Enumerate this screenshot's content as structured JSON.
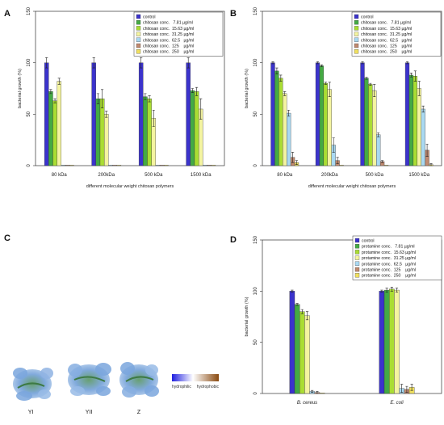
{
  "panels": {
    "A": {
      "letter": "A"
    },
    "B": {
      "letter": "B"
    },
    "C": {
      "letter": "C"
    },
    "D": {
      "letter": "D"
    }
  },
  "colors": [
    "#3b33cc",
    "#44aa44",
    "#aadd33",
    "#f4f4a0",
    "#a9d9f2",
    "#c08a70",
    "#f0e060"
  ],
  "panel_c": {
    "molecule_labels": [
      "YI",
      "YII",
      "Z"
    ],
    "scale_left": "hydrophilic",
    "scale_right": "hydrophobic"
  },
  "chart_data": [
    {
      "id": "A",
      "type": "bar",
      "categories": [
        "80 kDa",
        "200kDa",
        "500 kDa",
        "1500 kDa"
      ],
      "xlabel": "different molecular weight chitosan polymers",
      "ylabel": "bacterial growth (%)",
      "ylim": [
        0,
        150
      ],
      "yticks": [
        0,
        50,
        100,
        150
      ],
      "legend_position": "top-right",
      "series": [
        {
          "name": "control",
          "values": [
            100,
            100,
            100,
            100
          ],
          "err": [
            5,
            5,
            5,
            5
          ]
        },
        {
          "name": "chitosan conc.   7.81 µg/ml",
          "values": [
            72,
            65,
            67,
            73
          ],
          "err": [
            2,
            5,
            3,
            2
          ]
        },
        {
          "name": "chitosan conc.  15.63 µg/ml",
          "values": [
            63,
            65,
            65,
            72
          ],
          "err": [
            2,
            9,
            3,
            4
          ]
        },
        {
          "name": "chitosan conc.  31.25 µg/ml",
          "values": [
            82,
            50,
            46,
            55
          ],
          "err": [
            3,
            3,
            8,
            10
          ]
        },
        {
          "name": "chitosan conc.  62.5   µg/ml",
          "values": [
            0.5,
            0.5,
            0.5,
            0.5
          ],
          "err": [
            0,
            0,
            0,
            0
          ]
        },
        {
          "name": "chitosan conc.  125    µg/ml",
          "values": [
            0.5,
            0.5,
            0.5,
            0.5
          ],
          "err": [
            0,
            0,
            0,
            0
          ]
        },
        {
          "name": "chitosan conc.  250    µg/ml",
          "values": [
            0.5,
            0.5,
            0.5,
            0.5
          ],
          "err": [
            0,
            0,
            0,
            0
          ]
        }
      ]
    },
    {
      "id": "B",
      "type": "bar",
      "categories": [
        "80 kDa",
        "200kDa",
        "500 kDa",
        "1500 kDa"
      ],
      "xlabel": "different molecular weight chitosan polymers",
      "ylabel": "bacterial growth (%)",
      "ylim": [
        0,
        150
      ],
      "yticks": [
        0,
        50,
        100,
        150
      ],
      "legend_position": "top-right",
      "series": [
        {
          "name": "control",
          "values": [
            100,
            100,
            100,
            100
          ],
          "err": [
            1,
            1,
            1,
            1
          ]
        },
        {
          "name": "chitosan conc.   7.81 µg/ml",
          "values": [
            92,
            97,
            85,
            88
          ],
          "err": [
            3,
            1,
            1,
            2
          ]
        },
        {
          "name": "chitosan conc.  15.63 µg/ml",
          "values": [
            85,
            80,
            79,
            87
          ],
          "err": [
            3,
            1,
            1,
            5
          ]
        },
        {
          "name": "chitosan conc.  31.25 µg/ml",
          "values": [
            70,
            74,
            73,
            75
          ],
          "err": [
            2,
            7,
            6,
            7
          ]
        },
        {
          "name": "chitosan conc.  62.5   µg/ml",
          "values": [
            51,
            20,
            30,
            55
          ],
          "err": [
            3,
            7,
            2,
            3
          ]
        },
        {
          "name": "chitosan conc.  125    µg/ml",
          "values": [
            8,
            5,
            4,
            15
          ],
          "err": [
            5,
            3,
            1,
            6
          ]
        },
        {
          "name": "chitosan conc.  250    µg/ml",
          "values": [
            3,
            0.5,
            0.5,
            1
          ],
          "err": [
            2,
            0,
            0,
            1
          ]
        }
      ]
    },
    {
      "id": "D",
      "type": "bar",
      "categories": [
        "B. cereus",
        "E. coli"
      ],
      "xlabel": "",
      "ylabel": "bacterial growth (%)",
      "ylim": [
        0,
        150
      ],
      "yticks": [
        0,
        50,
        100,
        150
      ],
      "legend_position": "top-right",
      "series": [
        {
          "name": "control",
          "values": [
            100,
            100
          ],
          "err": [
            1,
            1
          ]
        },
        {
          "name": "protamine conc.   7.81 µg/ml",
          "values": [
            87,
            101
          ],
          "err": [
            1,
            2
          ]
        },
        {
          "name": "protamine conc.  15.63 µg/ml",
          "values": [
            80,
            102
          ],
          "err": [
            2,
            2
          ]
        },
        {
          "name": "protamine conc.  31.25 µg/ml",
          "values": [
            76,
            101
          ],
          "err": [
            4,
            2
          ]
        },
        {
          "name": "protamine conc.  62.5   µg/ml",
          "values": [
            2,
            5
          ],
          "err": [
            1,
            4
          ]
        },
        {
          "name": "protamine conc.  125    µg/ml",
          "values": [
            1,
            4
          ],
          "err": [
            1,
            3
          ]
        },
        {
          "name": "protamine conc.  250    µg/ml",
          "values": [
            0.5,
            6
          ],
          "err": [
            0,
            3
          ]
        }
      ]
    }
  ]
}
